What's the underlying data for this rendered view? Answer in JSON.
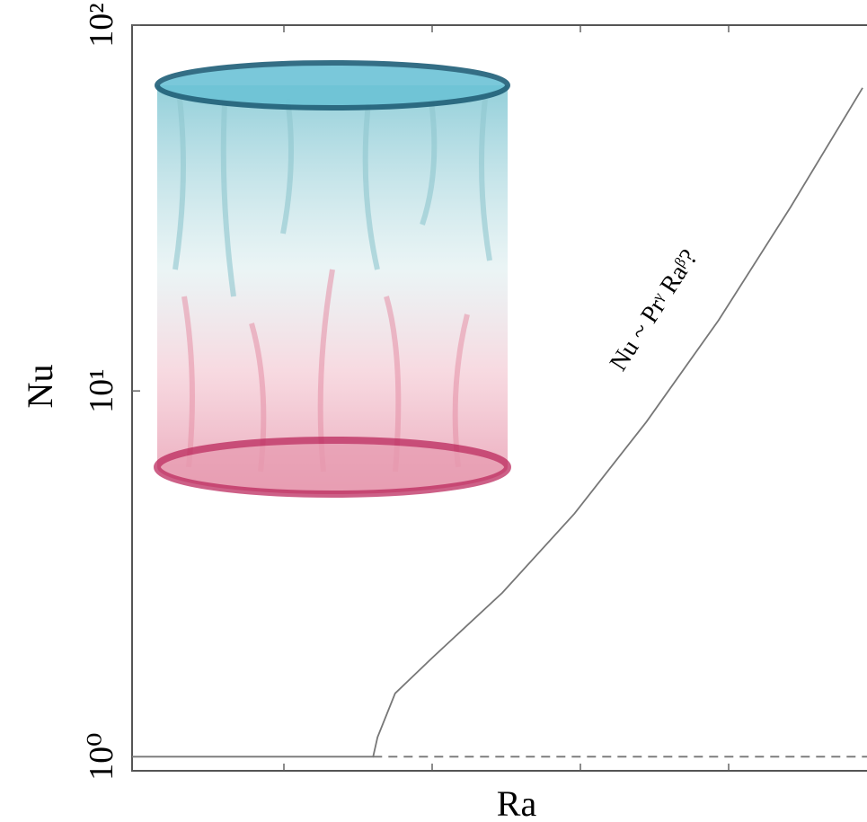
{
  "chart_data": {
    "type": "line",
    "xlabel": "Ra",
    "ylabel": "Nu",
    "annotation": "Nu ~ Prᵞ Raᵝ?",
    "ylog": true,
    "xlim": [
      0,
      5
    ],
    "ylim": [
      0.915,
      100
    ],
    "yticks": [
      {
        "value": 1,
        "label": "10⁰"
      },
      {
        "value": 10,
        "label": "10¹"
      },
      {
        "value": 100,
        "label": "10²"
      }
    ],
    "series": [
      {
        "color": "#777777",
        "dash": false,
        "x": [
          0,
          1.64,
          1.67,
          1.79,
          2.04,
          2.52,
          3.01,
          3.5,
          3.99,
          4.48,
          4.97
        ],
        "values": [
          1,
          1,
          1.13,
          1.49,
          1.86,
          2.81,
          4.62,
          8.24,
          15.6,
          31.8,
          67.4
        ]
      },
      {
        "color": "#777777",
        "dash": true,
        "x": [
          1.64,
          5
        ],
        "values": [
          1,
          1
        ]
      }
    ]
  }
}
